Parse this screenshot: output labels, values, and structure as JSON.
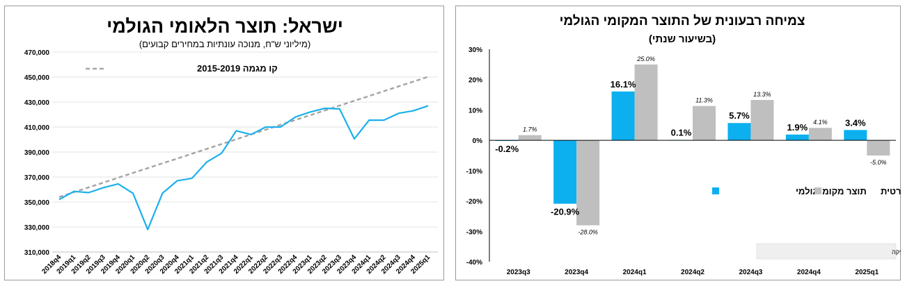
{
  "chart_data": [
    {
      "type": "line",
      "title": "ישראל: תוצר הלאומי הגולמי",
      "subtitle": "(מיליוני ש\"ח, מנוכה עונתיות במחירים קבועים)",
      "xlabel": "",
      "ylabel": "",
      "ylim": [
        310000,
        470000
      ],
      "yticks": [
        "310,000",
        "330,000",
        "350,000",
        "370,000",
        "390,000",
        "410,000",
        "430,000",
        "450,000",
        "470,000"
      ],
      "grid": true,
      "legend_position": "top-left",
      "x": [
        "2018q4",
        "2019q1",
        "2019q2",
        "2019q3",
        "2019q4",
        "2020q1",
        "2020q2",
        "2020q3",
        "2020q4",
        "2021q1",
        "2021q2",
        "2021q3",
        "2021q4",
        "2022q1",
        "2022q2",
        "2022q3",
        "2022q4",
        "2023q1",
        "2023q2",
        "2023q3",
        "2023q4",
        "2024q1",
        "2024q2",
        "2024q3",
        "2024q4",
        "2025q1"
      ],
      "series": [
        {
          "values": [
            352000,
            358500,
            357500,
            361500,
            364500,
            357000,
            328000,
            357000,
            367000,
            369000,
            382000,
            389000,
            407000,
            404000,
            410000,
            410000,
            418000,
            422000,
            425000,
            424500,
            400500,
            415500,
            415500,
            421000,
            423000,
            427000
          ],
          "color": "#1ab0ec"
        },
        {
          "name": "קו מגמה 2015-2019",
          "values": [
            354000,
            357850,
            361700,
            365550,
            369400,
            373250,
            377100,
            380950,
            384800,
            388650,
            392500,
            396350,
            400200,
            404050,
            407900,
            411750,
            415600,
            419450,
            423300,
            427150,
            431000,
            434850,
            438700,
            442550,
            446400,
            450250
          ],
          "color": "#a6a6a6",
          "dashed": true
        }
      ]
    },
    {
      "type": "bar",
      "title": "צמיחה רבעונית של התוצר המקומי הגולמי",
      "subtitle": "(בשיעור שנתי)",
      "xlabel": "",
      "ylabel": "",
      "ylim": [
        -40,
        30
      ],
      "yticks": [
        "-40%",
        "-30%",
        "-20%",
        "-10%",
        "0%",
        "10%",
        "20%",
        "30%"
      ],
      "legend_position": "center-right",
      "source": "מקור: הלשכה המרכזית לסטטיסטיקה",
      "categories": [
        "2023q3",
        "2023q4",
        "2024q1",
        "2024q2",
        "2024q3",
        "2024q4",
        "2025q1"
      ],
      "series": [
        {
          "name": "תוצר מקומי גולמי",
          "values": [
            -0.2,
            -20.9,
            16.1,
            0.1,
            5.7,
            1.9,
            3.4
          ],
          "labels": [
            "-0.2%",
            "-20.9%",
            "16.1%",
            "0.1%",
            "5.7%",
            "1.9%",
            "3.4%"
          ],
          "color": "#0cb0ef"
        },
        {
          "name": "צריכה פרטית",
          "values": [
            1.7,
            -28.0,
            25.0,
            11.3,
            13.3,
            4.1,
            -5.0
          ],
          "labels": [
            "1.7%",
            "-28.0%",
            "25.0%",
            "11.3%",
            "13.3%",
            "4.1%",
            "-5.0%"
          ],
          "color": "#bfbfbf"
        }
      ]
    }
  ]
}
